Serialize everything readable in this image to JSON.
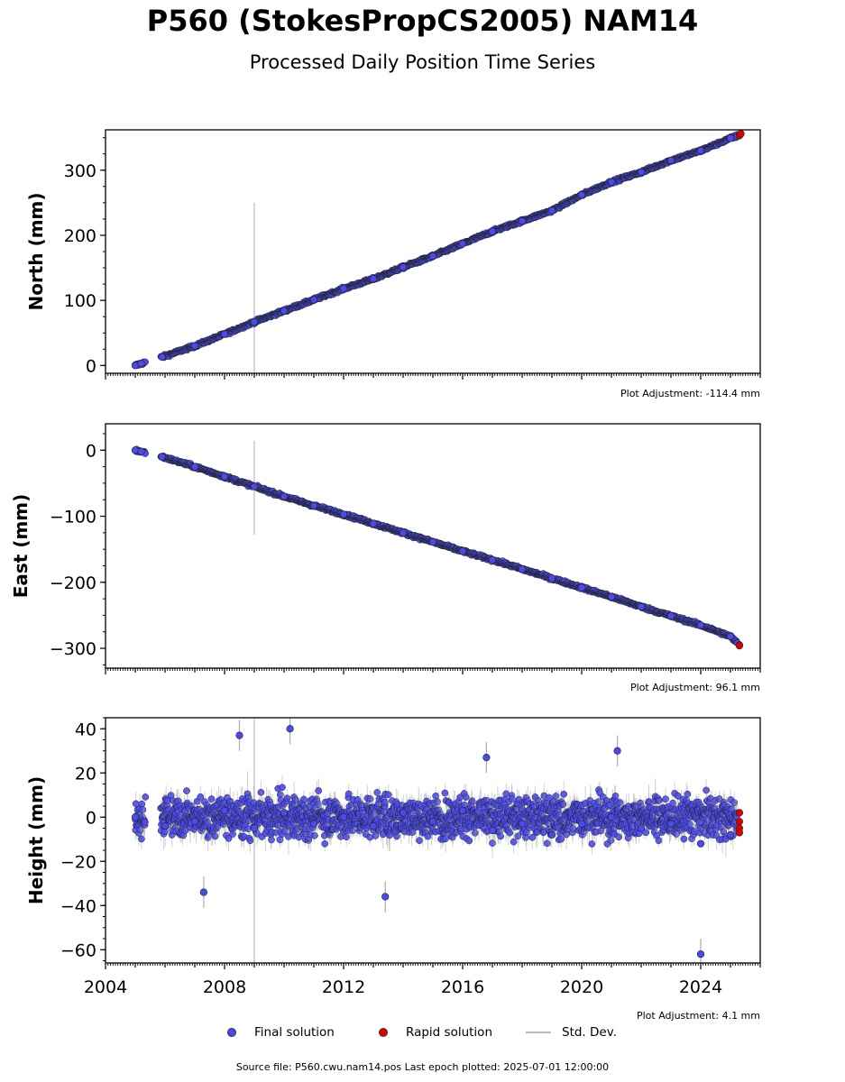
{
  "title": "P560 (StokesPropCS2005) NAM14",
  "subtitle": "Processed Daily Position Time Series",
  "legend": {
    "final": "Final solution",
    "rapid": "Rapid solution",
    "std": "Std. Dev."
  },
  "source": "Source file: P560.cwu.nam14.pos  Last epoch plotted: 2025-07-01 12:00:00",
  "colors": {
    "final": "#4a4af0",
    "rapid": "#e00000",
    "std": "#bbbbbb"
  },
  "chart_data": [
    {
      "type": "scatter",
      "ylabel": "North (mm)",
      "adjustment": "Plot Adjustment: -114.4 mm",
      "xlim": [
        2004,
        2026
      ],
      "ylim": [
        -12,
        362
      ],
      "yticks": [
        0,
        100,
        200,
        300
      ],
      "ytick_labels": [
        "0",
        "100",
        "200",
        "300"
      ],
      "xtick_labels": [],
      "series": [
        {
          "kind": "final",
          "x": [
            2005.0,
            2005.2,
            2005.9,
            2007.0,
            2008.0,
            2009.0,
            2010.0,
            2011.0,
            2012.0,
            2013.0,
            2014.0,
            2015.0,
            2016.0,
            2017.0,
            2018.0,
            2019.0,
            2020.0,
            2021.0,
            2022.0,
            2023.0,
            2024.0,
            2025.0,
            2025.3
          ],
          "y": [
            0,
            3,
            13,
            30,
            48,
            67,
            84,
            101,
            118,
            133,
            151,
            168,
            187,
            206,
            222,
            238,
            262,
            282,
            297,
            315,
            330,
            349,
            354
          ]
        },
        {
          "kind": "rapid",
          "x": [
            2025.3,
            2025.35
          ],
          "y": [
            353,
            356
          ]
        }
      ],
      "outlier_bar": {
        "x": 2009.0,
        "y_low": -12,
        "y_high": 250
      }
    },
    {
      "type": "scatter",
      "ylabel": "East (mm)",
      "adjustment": "Plot Adjustment: 96.1 mm",
      "xlim": [
        2004,
        2026
      ],
      "ylim": [
        -330,
        40
      ],
      "yticks": [
        0,
        -100,
        -200,
        -300
      ],
      "ytick_labels": [
        "0",
        "−100",
        "−200",
        "−300"
      ],
      "xtick_labels": [],
      "series": [
        {
          "kind": "final",
          "x": [
            2005.0,
            2005.2,
            2005.9,
            2007.0,
            2008.0,
            2009.0,
            2010.0,
            2011.0,
            2012.0,
            2013.0,
            2014.0,
            2015.0,
            2016.0,
            2017.0,
            2018.0,
            2019.0,
            2020.0,
            2021.0,
            2022.0,
            2023.0,
            2024.0,
            2025.0,
            2025.3
          ],
          "y": [
            0,
            -2,
            -10,
            -25,
            -40,
            -55,
            -70,
            -84,
            -97,
            -111,
            -125,
            -139,
            -153,
            -166,
            -180,
            -194,
            -208,
            -222,
            -237,
            -251,
            -265,
            -282,
            -295
          ]
        },
        {
          "kind": "rapid",
          "x": [
            2025.3
          ],
          "y": [
            -296
          ]
        }
      ],
      "outlier_bar": {
        "x": 2009.0,
        "y_low": -128,
        "y_high": 14
      }
    },
    {
      "type": "scatter",
      "ylabel": "Height (mm)",
      "adjustment": "Plot Adjustment: 4.1 mm",
      "xlim": [
        2004,
        2026
      ],
      "ylim": [
        -66,
        45
      ],
      "yticks": [
        40,
        20,
        0,
        -20,
        -40,
        -60
      ],
      "ytick_labels": [
        "40",
        "20",
        "0",
        "−20",
        "−40",
        "−60"
      ],
      "xtick_labels": [
        "2004",
        "2008",
        "2012",
        "2016",
        "2020",
        "2024"
      ],
      "series": [
        {
          "kind": "final",
          "x": [
            2005.0,
            2006.0,
            2007.0,
            2007.3,
            2008.0,
            2008.5,
            2009.0,
            2010.0,
            2010.2,
            2011.0,
            2012.0,
            2013.0,
            2013.4,
            2014.0,
            2015.0,
            2016.0,
            2016.8,
            2017.0,
            2018.0,
            2019.0,
            2020.0,
            2021.0,
            2021.2,
            2022.0,
            2023.0,
            2024.0,
            2024.0,
            2025.0
          ],
          "y": [
            0,
            -4,
            -2,
            -34,
            3,
            37,
            -5,
            2,
            40,
            -3,
            0,
            -4,
            -36,
            2,
            -2,
            3,
            27,
            -6,
            -3,
            -8,
            -3,
            0,
            30,
            -5,
            -3,
            -12,
            -62,
            -8
          ]
        },
        {
          "kind": "rapid",
          "x": [
            2025.3,
            2025.3,
            2025.3,
            2025.3
          ],
          "y": [
            2,
            -2,
            -5,
            -7
          ]
        }
      ],
      "outlier_bar": {
        "x": 2009.0,
        "y_low": -66,
        "y_high": 45
      }
    }
  ]
}
